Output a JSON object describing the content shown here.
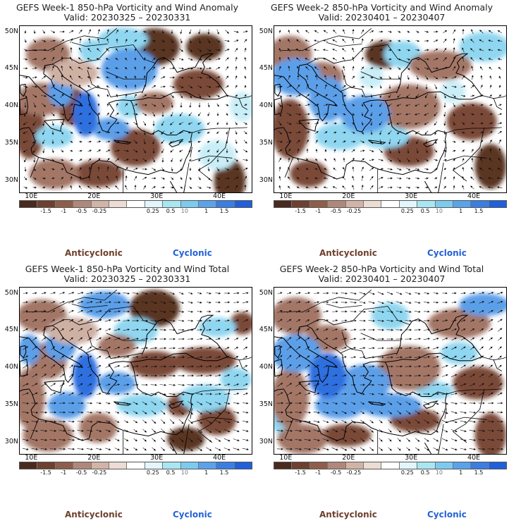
{
  "panels": [
    {
      "title": "GEFS Week-1 850-hPa Vorticity and Wind Anomaly",
      "valid": "Valid: 20230325 – 20230331",
      "pattern": "anom1",
      "arrow_mode": "anom"
    },
    {
      "title": "GEFS Week-2 850-hPa Vorticity and Wind Anomaly",
      "valid": "Valid: 20230401 – 20230407",
      "pattern": "anom2",
      "arrow_mode": "anom"
    },
    {
      "title": "GEFS Week-1 850-hPa Vorticity and Wind Total",
      "valid": "Valid: 20230325 – 20230331",
      "pattern": "tot1",
      "arrow_mode": "total"
    },
    {
      "title": "GEFS Week-2 850-hPa Vorticity and Wind Total",
      "valid": "Valid: 20230401 – 20230407",
      "pattern": "tot2",
      "arrow_mode": "total"
    }
  ],
  "axes": {
    "lat_labels": [
      "50N",
      "45N",
      "40N",
      "35N",
      "30N"
    ],
    "lon_labels": [
      "10E",
      "20E",
      "30E",
      "40E"
    ]
  },
  "colorbar": {
    "colors": [
      "#4a2a1e",
      "#6e4030",
      "#8e5e4a",
      "#b0887a",
      "#d2b4a6",
      "#ecdcd4",
      "#ffffff",
      "#e2f6fb",
      "#a8e6f2",
      "#7ccbef",
      "#5aa3ea",
      "#3a7ee2",
      "#2060da"
    ],
    "tick_labels": [
      "-1.5",
      "-1",
      "-0.5",
      "-0.25",
      "0.25",
      "0.5",
      "1",
      "1.5"
    ],
    "middle_label": "10",
    "anticyclonic_label": "Anticyclonic",
    "cyclonic_label": "Cyclonic"
  }
}
